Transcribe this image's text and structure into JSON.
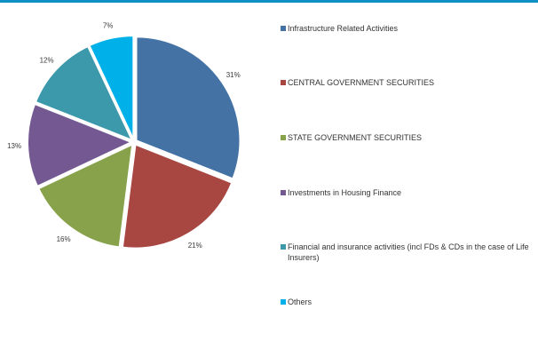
{
  "chart_data": {
    "type": "pie",
    "title": "",
    "slices": [
      {
        "name": "Infrastructure Related Activities",
        "value": 31,
        "label": "31%",
        "color": "#4472a4"
      },
      {
        "name": "CENTRAL GOVERNMENT SECURITIES",
        "value": 21,
        "label": "21%",
        "color": "#a84642"
      },
      {
        "name": "STATE GOVERNMENT SECURITIES",
        "value": 16,
        "label": "16%",
        "color": "#87a24a"
      },
      {
        "name": "Investments in Housing Finance",
        "value": 13,
        "label": "13%",
        "color": "#735892"
      },
      {
        "name": "Financial and insurance activities (incl FDs & CDs in the case of Life Insurers)",
        "value": 12,
        "label": "12%",
        "color": "#3c98ab"
      },
      {
        "name": "Others",
        "value": 7,
        "label": "7%",
        "color": "#00b0e8"
      }
    ],
    "legend_placement": "right",
    "slice_separation": "exploded"
  },
  "colors": {
    "top_rule": "#0f8fc3",
    "slice_stroke": "#ffffff"
  }
}
